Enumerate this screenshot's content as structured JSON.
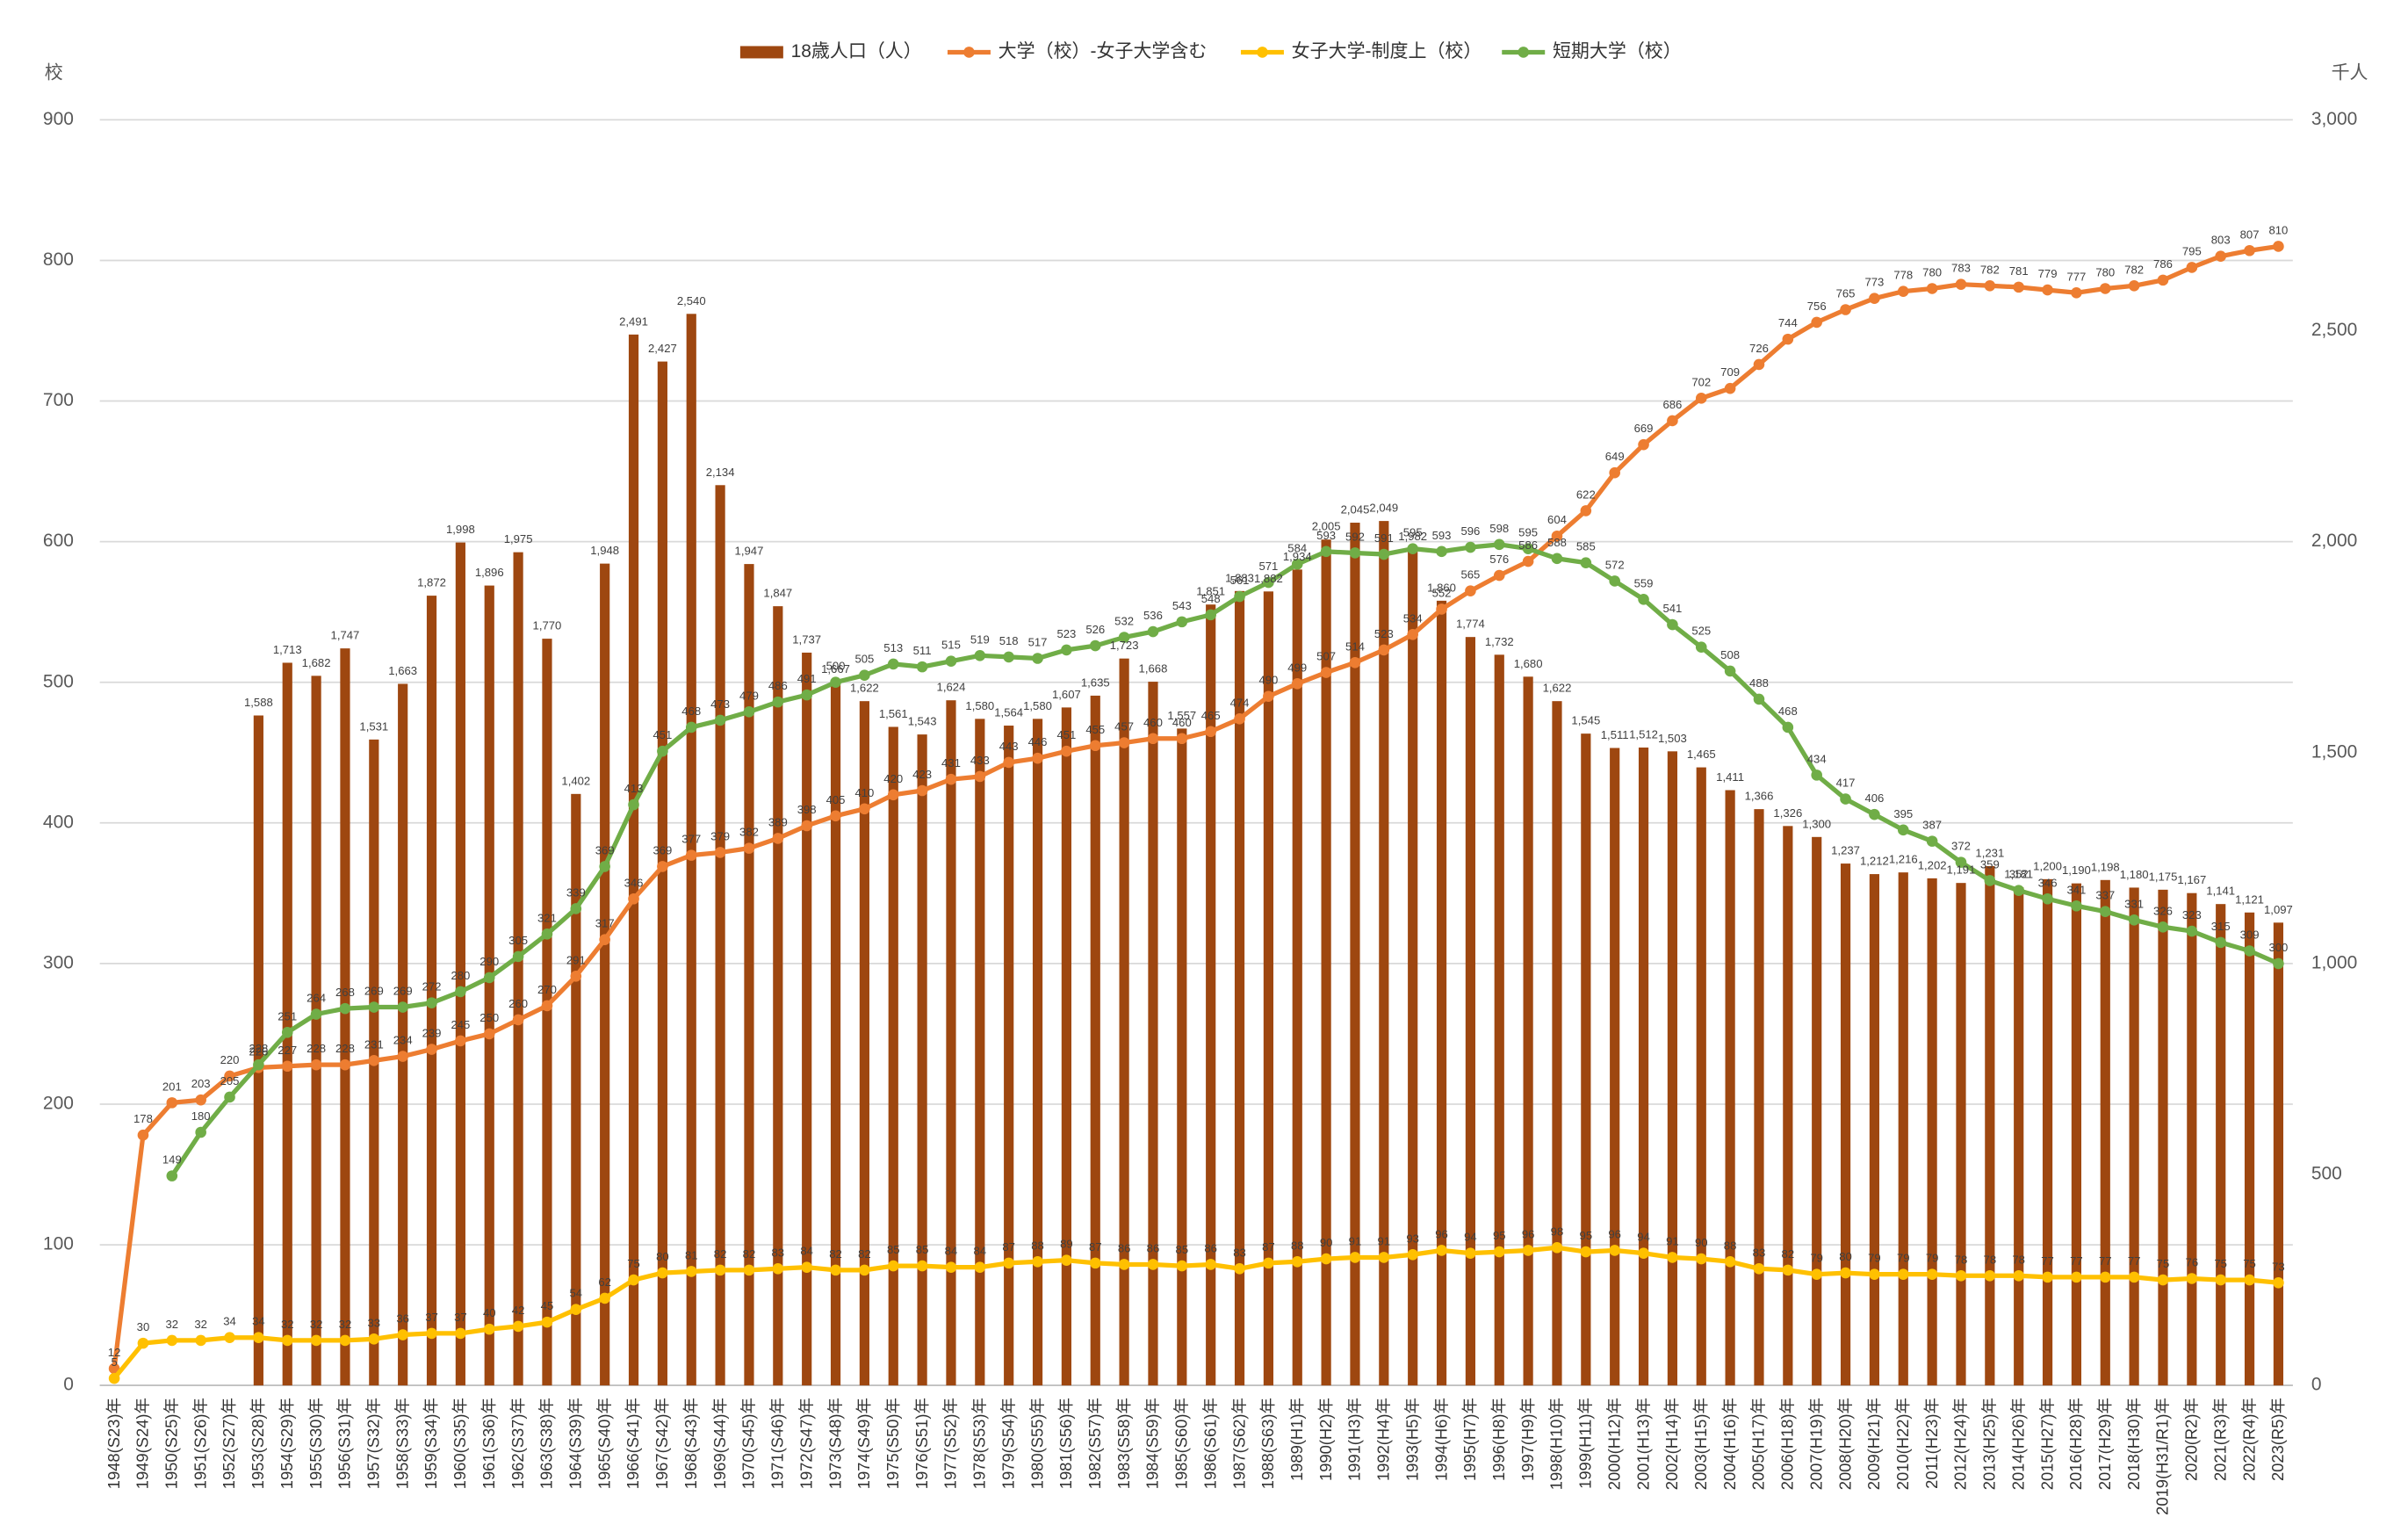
{
  "chart_data": {
    "type": "combo",
    "y_label": "校",
    "y2_label": "千人",
    "categories": [
      "1948(S23)年",
      "1949(S24)年",
      "1950(S25)年",
      "1951(S26)年",
      "1952(S27)年",
      "1953(S28)年",
      "1954(S29)年",
      "1955(S30)年",
      "1956(S31)年",
      "1957(S32)年",
      "1958(S33)年",
      "1959(S34)年",
      "1960(S35)年",
      "1961(S36)年",
      "1962(S37)年",
      "1963(S38)年",
      "1964(S39)年",
      "1965(S40)年",
      "1966(S41)年",
      "1967(S42)年",
      "1968(S43)年",
      "1969(S44)年",
      "1970(S45)年",
      "1971(S46)年",
      "1972(S47)年",
      "1973(S48)年",
      "1974(S49)年",
      "1975(S50)年",
      "1976(S51)年",
      "1977(S52)年",
      "1978(S53)年",
      "1979(S54)年",
      "1980(S55)年",
      "1981(S56)年",
      "1982(S57)年",
      "1983(S58)年",
      "1984(S59)年",
      "1985(S60)年",
      "1986(S61)年",
      "1987(S62)年",
      "1988(S63)年",
      "1989(H1)年",
      "1990(H2)年",
      "1991(H3)年",
      "1992(H4)年",
      "1993(H5)年",
      "1994(H6)年",
      "1995(H7)年",
      "1996(H8)年",
      "1997(H9)年",
      "1998(H10)年",
      "1999(H11)年",
      "2000(H12)年",
      "2001(H13)年",
      "2002(H14)年",
      "2003(H15)年",
      "2004(H16)年",
      "2005(H17)年",
      "2006(H18)年",
      "2007(H19)年",
      "2008(H20)年",
      "2009(H21)年",
      "2010(H22)年",
      "2011(H23)年",
      "2012(H24)年",
      "2013(H25)年",
      "2014(H26)年",
      "2015(H27)年",
      "2016(H28)年",
      "2017(H29)年",
      "2018(H30)年",
      "2019(H31/R1)年",
      "2020(R2)年",
      "2021(R3)年",
      "2022(R4)年",
      "2023(R5)年"
    ],
    "series": [
      {
        "name": "18歳人口（人）",
        "type": "bar",
        "axis": "y2",
        "color": "#9e4710",
        "values": [
          null,
          null,
          null,
          null,
          null,
          1588,
          1713,
          1682,
          1747,
          1531,
          1663,
          1872,
          1998,
          1896,
          1975,
          1770,
          1402,
          1948,
          2491,
          2427,
          2540,
          2134,
          1947,
          1847,
          1737,
          1667,
          1622,
          1561,
          1543,
          1624,
          1580,
          1564,
          1580,
          1607,
          1635,
          1723,
          1668,
          1557,
          1851,
          1883,
          1882,
          1934,
          2005,
          2045,
          2049,
          1982,
          1860,
          1774,
          1732,
          1680,
          1622,
          1545,
          1511,
          1512,
          1503,
          1465,
          1411,
          1366,
          1326,
          1300,
          1237,
          1212,
          1216,
          1202,
          1191,
          1231,
          1181,
          1200,
          1190,
          1198,
          1180,
          1175,
          1167,
          1141,
          1121,
          1097
        ],
        "value_labels": [
          null,
          null,
          null,
          null,
          null,
          "1,588",
          "1,713",
          "1,682",
          "1,747",
          "1,531",
          "1,663",
          "1,872",
          "1,998",
          "1,896",
          "1,975",
          "1,770",
          "1,402",
          "1,948",
          "2,491",
          "2,427",
          "2,540",
          "2,134",
          "1,947",
          "1,847",
          "1,737",
          "1,667",
          "1,622",
          "1,561",
          "1,543",
          "1,624",
          "1,580",
          "1,564",
          "1,580",
          "1,607",
          "1,635",
          "1,723",
          "1,668",
          "1,557",
          "1,851",
          "1,883",
          "1,882",
          "1,934",
          "2,005",
          "2,045",
          "2,049",
          "1,982",
          "1,860",
          "1,774",
          "1,732",
          "1,680",
          "1,622",
          "1,545",
          "1,511",
          "1,512",
          "1,503",
          "1,465",
          "1,411",
          "1,366",
          "1,326",
          "1,300",
          "1,237",
          "1,212",
          "1,216",
          "1,202",
          "1,191",
          "1,231",
          "1,181",
          "1,200",
          "1,190",
          "1,198",
          "1,180",
          "1,175",
          "1,167",
          "1,141",
          "1,121",
          "1,097"
        ]
      },
      {
        "name": "大学（校）-女子大学含む",
        "type": "line",
        "axis": "y",
        "color": "#ed7d31",
        "values": [
          12,
          178,
          201,
          203,
          220,
          226,
          227,
          228,
          228,
          231,
          234,
          239,
          245,
          250,
          260,
          270,
          291,
          317,
          346,
          369,
          377,
          379,
          382,
          389,
          398,
          405,
          410,
          420,
          423,
          431,
          433,
          443,
          446,
          451,
          455,
          457,
          460,
          460,
          465,
          474,
          490,
          499,
          507,
          514,
          523,
          534,
          552,
          565,
          576,
          586,
          604,
          622,
          649,
          669,
          686,
          702,
          709,
          726,
          744,
          756,
          765,
          773,
          778,
          780,
          783,
          782,
          781,
          779,
          777,
          780,
          782,
          786,
          795,
          803,
          807,
          810
        ]
      },
      {
        "name": "女子大学-制度上（校）",
        "type": "line",
        "axis": "y",
        "color": "#ffc000",
        "values": [
          5,
          30,
          32,
          32,
          34,
          34,
          32,
          32,
          32,
          33,
          36,
          37,
          37,
          40,
          42,
          45,
          54,
          62,
          75,
          80,
          81,
          82,
          82,
          83,
          84,
          82,
          82,
          85,
          85,
          84,
          84,
          87,
          88,
          89,
          87,
          86,
          86,
          85,
          86,
          83,
          87,
          88,
          90,
          91,
          91,
          93,
          96,
          94,
          95,
          96,
          98,
          95,
          96,
          94,
          91,
          90,
          88,
          83,
          82,
          79,
          80,
          79,
          79,
          79,
          78,
          78,
          78,
          77,
          77,
          77,
          77,
          75,
          76,
          75,
          75,
          73
        ]
      },
      {
        "name": "短期大学（校）",
        "type": "line",
        "axis": "y",
        "color": "#70ad47",
        "values": [
          null,
          null,
          149,
          180,
          205,
          228,
          251,
          264,
          268,
          269,
          269,
          272,
          280,
          290,
          305,
          321,
          339,
          369,
          413,
          451,
          468,
          473,
          479,
          486,
          491,
          500,
          505,
          513,
          511,
          515,
          519,
          518,
          517,
          523,
          526,
          532,
          536,
          543,
          548,
          561,
          571,
          584,
          593,
          592,
          591,
          595,
          593,
          596,
          598,
          595,
          588,
          585,
          572,
          559,
          541,
          525,
          508,
          488,
          468,
          434,
          417,
          406,
          395,
          387,
          372,
          359,
          352,
          346,
          341,
          337,
          331,
          326,
          323,
          315,
          309,
          300
        ]
      }
    ],
    "ylim": [
      0,
      900
    ],
    "yticks": [
      0,
      100,
      200,
      300,
      400,
      500,
      600,
      700,
      800,
      900
    ],
    "y2lim": [
      0,
      3000
    ],
    "y2ticks": [
      0,
      500,
      {
        "value": 1000,
        "label": "1,000"
      },
      {
        "value": 1500,
        "label": "1,500"
      },
      {
        "value": 2000,
        "label": "2,000"
      },
      {
        "value": 2500,
        "label": "2,500"
      },
      {
        "value": 3000,
        "label": "3,000"
      }
    ],
    "grid": true,
    "legend": "top"
  }
}
